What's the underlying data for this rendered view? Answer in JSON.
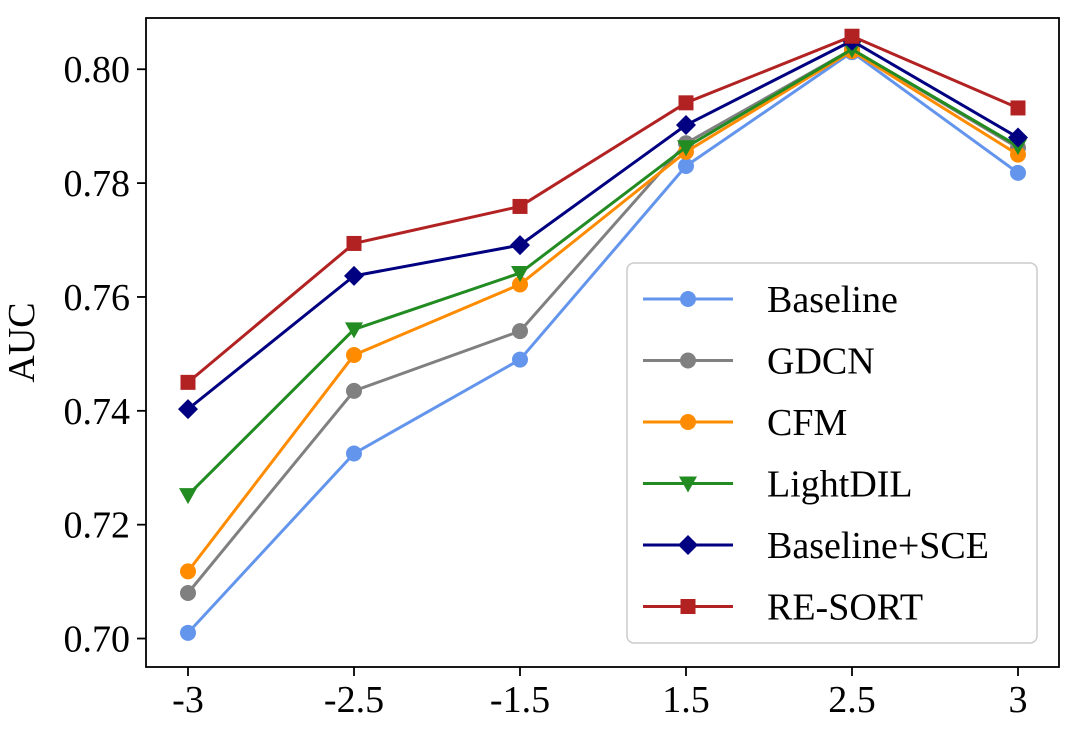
{
  "chart_data": {
    "type": "line",
    "title": "",
    "xlabel": "",
    "ylabel": "AUC",
    "categories": [
      "-3",
      "-2.5",
      "-1.5",
      "1.5",
      "2.5",
      "3"
    ],
    "ylim": [
      0.695,
      0.809
    ],
    "yticks": [
      0.7,
      0.72,
      0.74,
      0.76,
      0.78,
      0.8
    ],
    "ytick_labels": [
      "0.70",
      "0.72",
      "0.74",
      "0.76",
      "0.78",
      "0.80"
    ],
    "grid": false,
    "legend_position": "lower-right",
    "series": [
      {
        "name": "Baseline",
        "color": "#6495ED",
        "marker": "circle",
        "values": [
          0.701,
          0.7325,
          0.749,
          0.783,
          0.803,
          0.7818
        ]
      },
      {
        "name": "GDCN",
        "color": "#808080",
        "marker": "circle",
        "values": [
          0.708,
          0.7435,
          0.754,
          0.787,
          0.8035,
          0.7862
        ]
      },
      {
        "name": "CFM",
        "color": "#FF8C00",
        "marker": "circle",
        "values": [
          0.7118,
          0.7498,
          0.7622,
          0.7855,
          0.8032,
          0.785
        ]
      },
      {
        "name": "LightDIL",
        "color": "#228B22",
        "marker": "triangle-down",
        "values": [
          0.7252,
          0.7543,
          0.7642,
          0.7863,
          0.8035,
          0.7865
        ]
      },
      {
        "name": "Baseline+SCE",
        "color": "#000080",
        "marker": "diamond",
        "values": [
          0.7403,
          0.7637,
          0.7691,
          0.7902,
          0.805,
          0.788
        ]
      },
      {
        "name": "RE-SORT",
        "color": "#B22222",
        "marker": "square",
        "values": [
          0.745,
          0.7694,
          0.7759,
          0.7941,
          0.8058,
          0.7932
        ]
      }
    ]
  }
}
